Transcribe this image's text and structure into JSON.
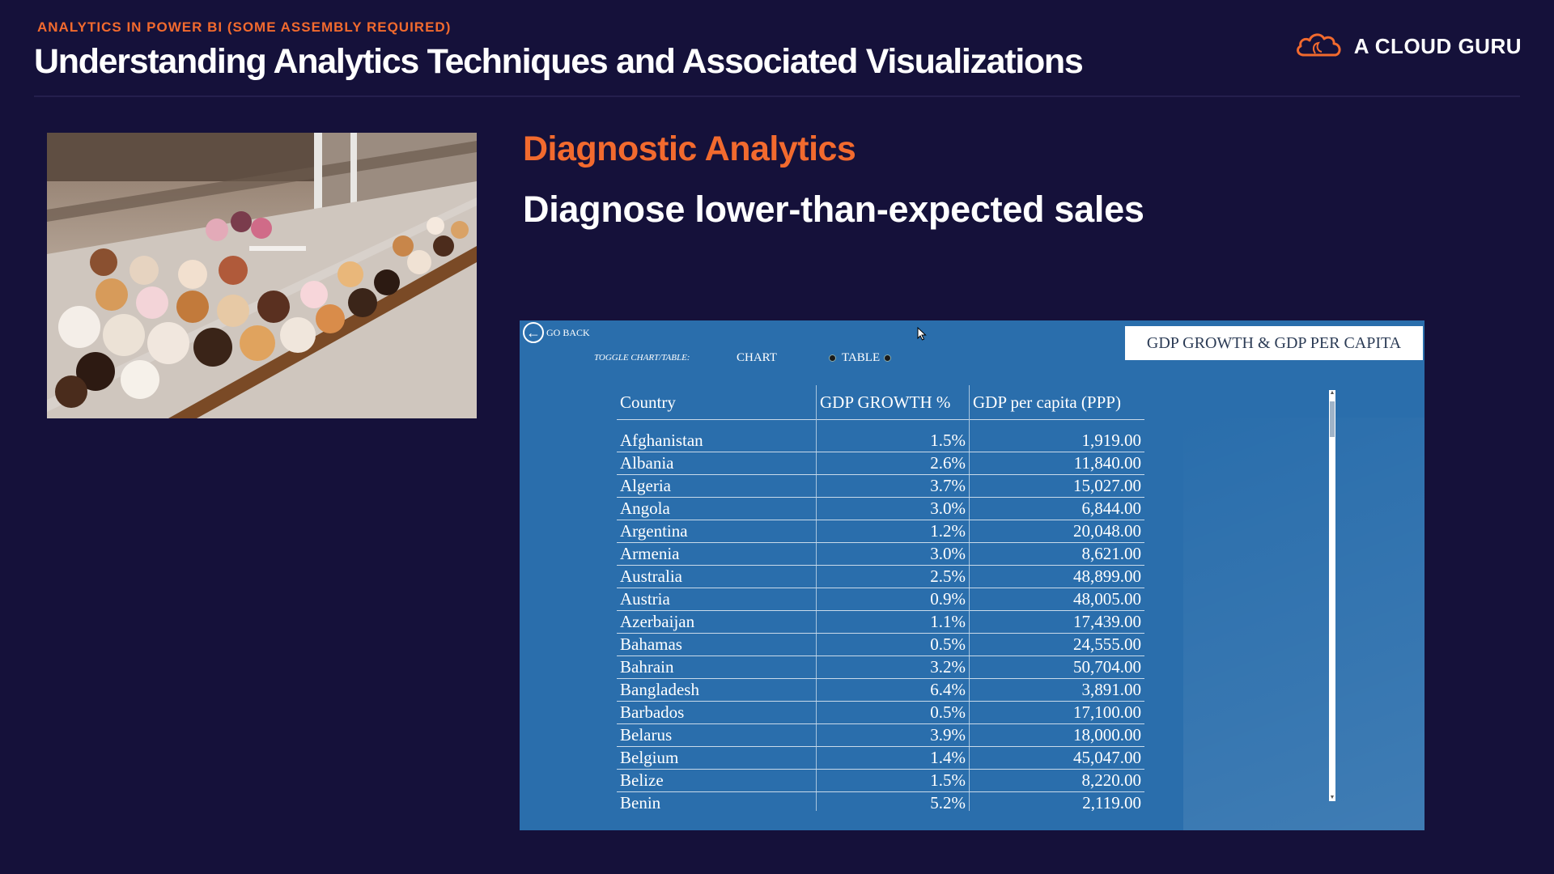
{
  "header": {
    "kicker": "ANALYTICS IN POWER BI (SOME ASSEMBLY REQUIRED)",
    "title": "Understanding Analytics Techniques and Associated Visualizations",
    "brand": "A CLOUD GURU"
  },
  "slide": {
    "section_title": "Diagnostic  Analytics",
    "subtitle": "Diagnose lower-than-expected sales"
  },
  "report": {
    "go_back": "GO BACK",
    "title": "GDP GROWTH & GDP PER CAPITA",
    "toggle_label": "TOGGLE CHART/TABLE:",
    "toggle_chart": "CHART",
    "toggle_table": "TABLE",
    "columns": [
      "Country",
      "GDP GROWTH %",
      "GDP per capita (PPP)"
    ],
    "rows": [
      [
        "Afghanistan",
        "1.5%",
        "1,919.00"
      ],
      [
        "Albania",
        "2.6%",
        "11,840.00"
      ],
      [
        "Algeria",
        "3.7%",
        "15,027.00"
      ],
      [
        "Angola",
        "3.0%",
        "6,844.00"
      ],
      [
        "Argentina",
        "1.2%",
        "20,048.00"
      ],
      [
        "Armenia",
        "3.0%",
        "8,621.00"
      ],
      [
        "Australia",
        "2.5%",
        "48,899.00"
      ],
      [
        "Austria",
        "0.9%",
        "48,005.00"
      ],
      [
        "Azerbaijan",
        "1.1%",
        "17,439.00"
      ],
      [
        "Bahamas",
        "0.5%",
        "24,555.00"
      ],
      [
        "Bahrain",
        "3.2%",
        "50,704.00"
      ],
      [
        "Bangladesh",
        "6.4%",
        "3,891.00"
      ],
      [
        "Barbados",
        "0.5%",
        "17,100.00"
      ],
      [
        "Belarus",
        "3.9%",
        "18,000.00"
      ],
      [
        "Belgium",
        "1.4%",
        "45,047.00"
      ],
      [
        "Belize",
        "1.5%",
        "8,220.00"
      ],
      [
        "Benin",
        "5.2%",
        "2,119.00"
      ]
    ]
  },
  "colors": {
    "background": "#15113a",
    "accent": "#f26a2e",
    "report_bg": "#2a6eac"
  },
  "icons": {
    "brand": "cloud-logo-icon",
    "go_back": "arrow-left-circle-icon",
    "cursor": "mouse-pointer-icon"
  }
}
